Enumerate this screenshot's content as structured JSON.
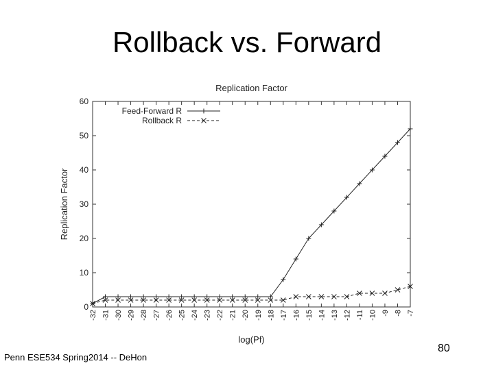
{
  "slide": {
    "title": "Rollback vs. Forward",
    "footer": "Penn ESE534 Spring2014 -- DeHon",
    "page_number": "80"
  },
  "chart_data": {
    "type": "line",
    "title": "Replication Factor",
    "xlabel": "log(Pf)",
    "ylabel": "Replication Factor",
    "x": [
      -32,
      -31,
      -30,
      -29,
      -28,
      -27,
      -26,
      -25,
      -24,
      -23,
      -22,
      -21,
      -20,
      -19,
      -18,
      -17,
      -16,
      -15,
      -14,
      -13,
      -12,
      -11,
      -10,
      -9,
      -8,
      -7
    ],
    "xlim": [
      -32,
      -7
    ],
    "ylim": [
      0,
      60
    ],
    "yticks": [
      0,
      10,
      20,
      30,
      40,
      50,
      60
    ],
    "grid": false,
    "legend_position": "top-left",
    "series": [
      {
        "name": "Feed-Forward R",
        "marker": "plus",
        "style": "solid",
        "values": [
          1,
          3,
          3,
          3,
          3,
          3,
          3,
          3,
          3,
          3,
          3,
          3,
          3,
          3,
          3,
          8,
          14,
          20,
          24,
          28,
          32,
          36,
          40,
          44,
          48,
          52
        ]
      },
      {
        "name": "Rollback R",
        "marker": "cross",
        "style": "dashed",
        "values": [
          1,
          2,
          2,
          2,
          2,
          2,
          2,
          2,
          2,
          2,
          2,
          2,
          2,
          2,
          2,
          2,
          3,
          3,
          3,
          3,
          3,
          4,
          4,
          4,
          5,
          6
        ]
      }
    ]
  }
}
